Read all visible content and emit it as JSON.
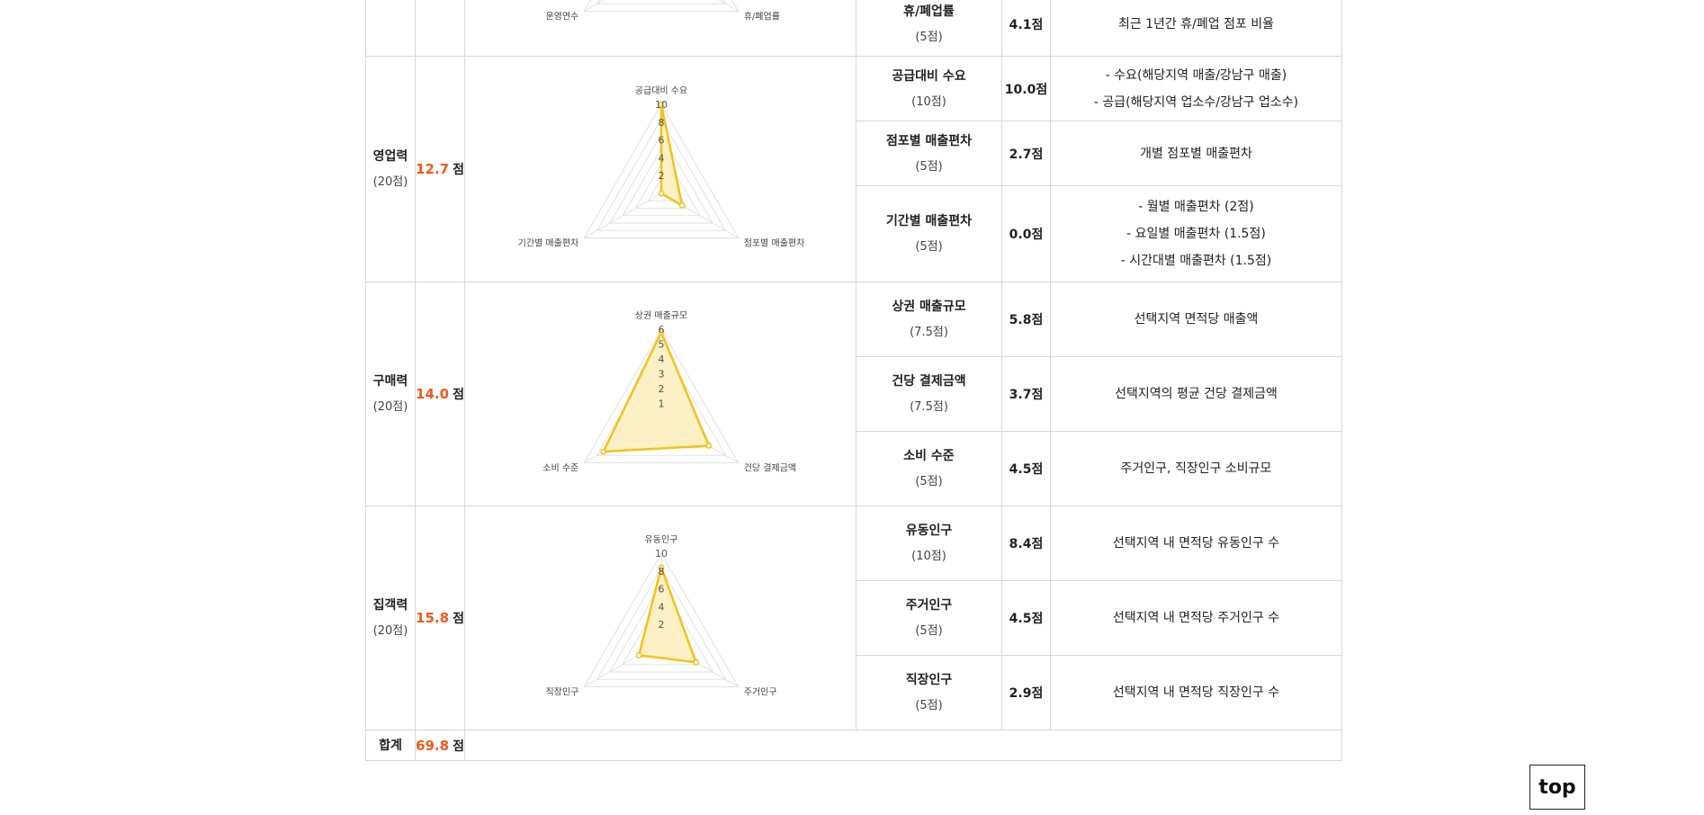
{
  "categories": [
    {
      "name": "",
      "max": "",
      "score": "",
      "score_unit": "",
      "radar": {
        "axes": [
          "",
          "휴/폐업률",
          "운영연수"
        ],
        "values": [
          5,
          0,
          0
        ],
        "max": 5,
        "ticks": [],
        "partial": true
      },
      "items": [
        {
          "name": "휴/폐업률",
          "max": "(5점)",
          "score": "4.1점",
          "desc": [
            "최근 1년간 휴/폐업 점포 비율"
          ]
        }
      ]
    },
    {
      "name": "영업력",
      "max": "(20점)",
      "score": "12.7",
      "score_unit": "점",
      "radar": {
        "axes": [
          "공급대비 수요",
          "점포별 매출편차",
          "기간별 매출편차"
        ],
        "values": [
          10,
          2.7,
          0
        ],
        "max": 10,
        "ticks": [
          "2",
          "4",
          "6",
          "8",
          "10"
        ]
      },
      "items": [
        {
          "name": "공급대비 수요",
          "max": "(10점)",
          "score": "10.0점",
          "desc": [
            "- 수요(해당지역 매출/강남구 매출)",
            "- 공급(해당지역 업소수/강남구 업소수)"
          ]
        },
        {
          "name": "점포별 매출편차",
          "max": "(5점)",
          "score": "2.7점",
          "desc": [
            "개별 점포별 매출편차"
          ]
        },
        {
          "name": "기간별 매출편차",
          "max": "(5점)",
          "score": "0.0점",
          "desc": [
            "- 월별 매출편차 (2점)",
            "- 요일별 매출편차 (1.5점)",
            "- 시간대별 매출편차 (1.5점)"
          ]
        }
      ]
    },
    {
      "name": "구매력",
      "max": "(20점)",
      "score": "14.0",
      "score_unit": "점",
      "radar": {
        "axes": [
          "상권 매출규모",
          "건당 결제금액",
          "소비 수준"
        ],
        "values": [
          5.8,
          3.7,
          4.5
        ],
        "max": 6,
        "ticks": [
          "1",
          "2",
          "3",
          "4",
          "5",
          "6"
        ]
      },
      "items": [
        {
          "name": "상권 매출규모",
          "max": "(7.5점)",
          "score": "5.8점",
          "desc": [
            "선택지역 면적당 매출액"
          ]
        },
        {
          "name": "건당 결제금액",
          "max": "(7.5점)",
          "score": "3.7점",
          "desc": [
            "선택지역의 평균 건당 결제금액"
          ]
        },
        {
          "name": "소비 수준",
          "max": "(5점)",
          "score": "4.5점",
          "desc": [
            "주거인구, 직장인구 소비규모"
          ]
        }
      ]
    },
    {
      "name": "집객력",
      "max": "(20점)",
      "score": "15.8",
      "score_unit": "점",
      "radar": {
        "axes": [
          "유동인구",
          "주거인구",
          "직장인구"
        ],
        "values": [
          8.4,
          4.5,
          2.9
        ],
        "max": 10,
        "ticks": [
          "2",
          "4",
          "6",
          "8",
          "10"
        ]
      },
      "items": [
        {
          "name": "유동인구",
          "max": "(10점)",
          "score": "8.4점",
          "desc": [
            "선택지역 내 면적당 유동인구 수"
          ]
        },
        {
          "name": "주거인구",
          "max": "(5점)",
          "score": "4.5점",
          "desc": [
            "선택지역 내 면적당 주거인구 수"
          ]
        },
        {
          "name": "직장인구",
          "max": "(5점)",
          "score": "2.9점",
          "desc": [
            "선택지역 내 면적당 직장인구 수"
          ]
        }
      ]
    }
  ],
  "total": {
    "label": "합계",
    "score": "69.8",
    "unit": "점"
  },
  "top_button": "top",
  "colors": {
    "accent": "#f15a1d",
    "radar_line": "#f2c21b",
    "radar_fill": "#fbedbb",
    "grid": "#e2e2e2",
    "border": "#d9d9d9"
  }
}
